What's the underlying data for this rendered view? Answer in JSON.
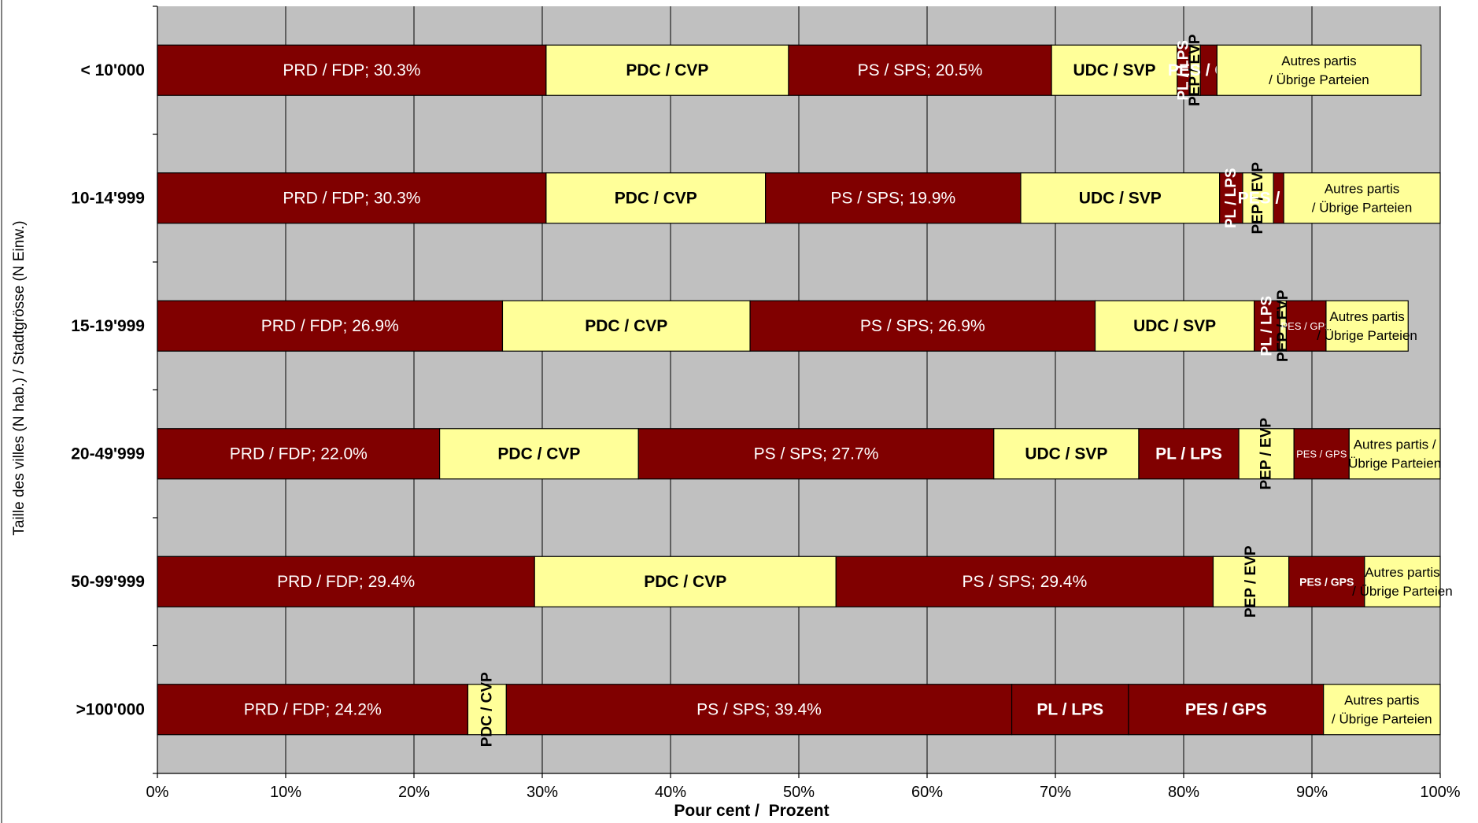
{
  "chart_data": {
    "type": "bar",
    "orientation": "horizontal",
    "stacked": true,
    "normalized": true,
    "title": "",
    "xlabel": "Pour cent /  Prozent",
    "ylabel": "Taille des villes (N hab.) / Stadtgrösse (N Einw.)",
    "xlim": [
      0,
      100
    ],
    "x_ticks": [
      "0%",
      "10%",
      "20%",
      "30%",
      "40%",
      "50%",
      "60%",
      "70%",
      "80%",
      "90%",
      "100%"
    ],
    "grid": true,
    "legend": "none",
    "colors": {
      "dark": "#800000",
      "light": "#ffff99",
      "plot_bg": "#c0c0c0",
      "grid": "#000000"
    },
    "categories": [
      "< 10'000",
      "10-14'999",
      "15-19'999",
      "20-49'999",
      "50-99'999",
      ">100'000"
    ],
    "bars": [
      {
        "category": "< 10'000",
        "segments": [
          {
            "party": "PRD / FDP",
            "value": 30.3,
            "fill": "dark",
            "label": "PRD / FDP; 30.3%",
            "label_style": "normal"
          },
          {
            "party": "PDC / CVP",
            "value": 18.9,
            "fill": "light",
            "label": "PDC / CVP",
            "label_style": "bold"
          },
          {
            "party": "PS / SPS",
            "value": 20.5,
            "fill": "dark",
            "label": "PS / SPS; 20.5%",
            "label_style": "normal"
          },
          {
            "party": "UDC / SVP",
            "value": 9.8,
            "fill": "light",
            "label": "UDC / SVP",
            "label_style": "bold"
          },
          {
            "party": "PL / LPS",
            "value": 1.0,
            "fill": "dark",
            "label": "PL / LPS",
            "label_style": "vertical"
          },
          {
            "party": "PEP / EVP",
            "value": 0.8,
            "fill": "light",
            "label": "PEP / EVP",
            "label_style": "vertical"
          },
          {
            "party": "PES / GPS",
            "value": 1.3,
            "fill": "dark",
            "label": "PES / GPS",
            "label_style": "bold"
          },
          {
            "party": "Autres partis / Übrige Parteien",
            "value": 15.9,
            "fill": "light",
            "label": "Autres partis",
            "label2": "/ Übrige Parteien",
            "label_style": "small"
          }
        ]
      },
      {
        "category": "10-14'999",
        "segments": [
          {
            "party": "PRD / FDP",
            "value": 30.3,
            "fill": "dark",
            "label": "PRD / FDP; 30.3%",
            "label_style": "normal"
          },
          {
            "party": "PDC / CVP",
            "value": 17.1,
            "fill": "light",
            "label": "PDC / CVP",
            "label_style": "bold"
          },
          {
            "party": "PS / SPS",
            "value": 19.9,
            "fill": "dark",
            "label": "PS / SPS; 19.9%",
            "label_style": "normal"
          },
          {
            "party": "UDC / SVP",
            "value": 15.5,
            "fill": "light",
            "label": "UDC / SVP",
            "label_style": "bold"
          },
          {
            "party": "PL / LPS",
            "value": 1.8,
            "fill": "dark",
            "label": "PL / LPS",
            "label_style": "vertical"
          },
          {
            "party": "PEP / EVP",
            "value": 2.4,
            "fill": "light",
            "label": "PEP / EVP",
            "label_style": "vertical"
          },
          {
            "party": "PES / GPS",
            "value": 0.8,
            "fill": "dark",
            "label": "PES / GPS",
            "label_style": "bold"
          },
          {
            "party": "Autres partis / Übrige Parteien",
            "value": 12.2,
            "fill": "light",
            "label": "Autres partis",
            "label2": "/ Übrige Parteien",
            "label_style": "small"
          }
        ]
      },
      {
        "category": "15-19'999",
        "segments": [
          {
            "party": "PRD / FDP",
            "value": 26.9,
            "fill": "dark",
            "label": "PRD / FDP; 26.9%",
            "label_style": "normal"
          },
          {
            "party": "PDC / CVP",
            "value": 19.3,
            "fill": "light",
            "label": "PDC / CVP",
            "label_style": "bold"
          },
          {
            "party": "PS / SPS",
            "value": 26.9,
            "fill": "dark",
            "label": "PS / SPS; 26.9%",
            "label_style": "normal"
          },
          {
            "party": "UDC / SVP",
            "value": 12.4,
            "fill": "light",
            "label": "UDC / SVP",
            "label_style": "bold"
          },
          {
            "party": "PL / LPS",
            "value": 2.0,
            "fill": "dark",
            "label": "PL / LPS",
            "label_style": "vertical"
          },
          {
            "party": "PEP / EVP",
            "value": 0.5,
            "fill": "light",
            "label": "PEP / EVP",
            "label_style": "vertical"
          },
          {
            "party": "PES / GPS",
            "value": 3.1,
            "fill": "dark",
            "label": "PES / GPS",
            "label_style": "tiny"
          },
          {
            "party": "Autres partis / Übrige Parteien",
            "value": 6.4,
            "fill": "light",
            "label": "Autres partis",
            "label2": "/ Übrige Parteien",
            "label_style": "small"
          }
        ]
      },
      {
        "category": "20-49'999",
        "segments": [
          {
            "party": "PRD / FDP",
            "value": 22.0,
            "fill": "dark",
            "label": "PRD / FDP; 22.0%",
            "label_style": "normal"
          },
          {
            "party": "PDC / CVP",
            "value": 15.5,
            "fill": "light",
            "label": "PDC / CVP",
            "label_style": "bold"
          },
          {
            "party": "PS / SPS",
            "value": 27.7,
            "fill": "dark",
            "label": "PS / SPS; 27.7%",
            "label_style": "normal"
          },
          {
            "party": "UDC / SVP",
            "value": 11.3,
            "fill": "light",
            "label": "UDC / SVP",
            "label_style": "bold"
          },
          {
            "party": "PL / LPS",
            "value": 7.8,
            "fill": "dark",
            "label": "PL / LPS",
            "label_style": "bold"
          },
          {
            "party": "PEP / EVP",
            "value": 4.3,
            "fill": "light",
            "label": "PEP / EVP",
            "label_style": "vertical"
          },
          {
            "party": "PES / GPS",
            "value": 4.3,
            "fill": "dark",
            "label": "PES / GPS",
            "label_style": "tiny"
          },
          {
            "party": "Autres partis / Übrige Parteien",
            "value": 7.1,
            "fill": "light",
            "label": "Autres partis /",
            "label2": "Übrige Parteien",
            "label_style": "small"
          }
        ]
      },
      {
        "category": "50-99'999",
        "segments": [
          {
            "party": "PRD / FDP",
            "value": 29.4,
            "fill": "dark",
            "label": "PRD / FDP; 29.4%",
            "label_style": "normal"
          },
          {
            "party": "PDC / CVP",
            "value": 23.5,
            "fill": "light",
            "label": "PDC / CVP",
            "label_style": "bold"
          },
          {
            "party": "PS / SPS",
            "value": 29.4,
            "fill": "dark",
            "label": "PS / SPS; 29.4%",
            "label_style": "normal"
          },
          {
            "party": "PEP / EVP",
            "value": 5.9,
            "fill": "light",
            "label": "PEP / EVP",
            "label_style": "vertical"
          },
          {
            "party": "PES / GPS",
            "value": 5.9,
            "fill": "dark",
            "label": "PES / GPS",
            "label_style": "tinybold"
          },
          {
            "party": "Autres partis / Übrige Parteien",
            "value": 5.9,
            "fill": "light",
            "label": "Autres partis",
            "label2": "/ Übrige Parteien",
            "label_style": "small"
          }
        ]
      },
      {
        "category": ">100'000",
        "segments": [
          {
            "party": "PRD / FDP",
            "value": 24.2,
            "fill": "dark",
            "label": "PRD / FDP; 24.2%",
            "label_style": "normal"
          },
          {
            "party": "PDC / CVP",
            "value": 3.0,
            "fill": "light",
            "label": "PDC / CVP",
            "label_style": "vertical"
          },
          {
            "party": "PS / SPS",
            "value": 39.4,
            "fill": "dark",
            "label": "PS / SPS; 39.4%",
            "label_style": "normal"
          },
          {
            "party": "PL / LPS",
            "value": 9.1,
            "fill": "dark",
            "label": "PL / LPS",
            "label_style": "bold"
          },
          {
            "party": "PES / GPS",
            "value": 15.2,
            "fill": "dark",
            "label": "PES / GPS",
            "label_style": "bold"
          },
          {
            "party": "Autres partis / Übrige Parteien",
            "value": 9.1,
            "fill": "light",
            "label": "Autres partis",
            "label2": "/ Übrige Parteien",
            "label_style": "small"
          }
        ]
      }
    ]
  }
}
